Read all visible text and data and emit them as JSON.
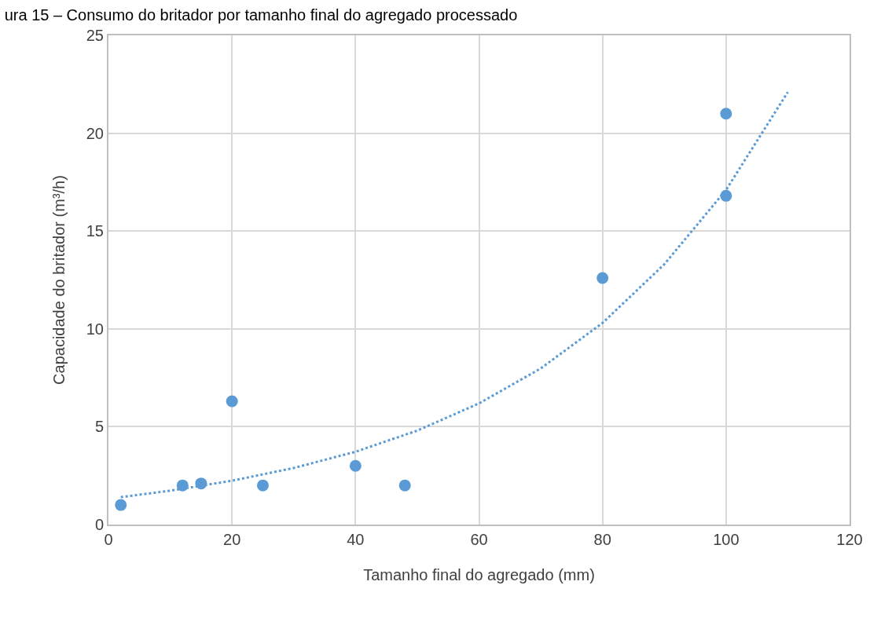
{
  "chart_data": {
    "type": "scatter",
    "title": "ura 15 – Consumo do britador por tamanho final do agregado processado",
    "xlabel": "Tamanho final do agregado (mm)",
    "ylabel": "Capacidade do britador (m³/h)",
    "series": [
      {
        "color": "#5b9bd5",
        "marker": "circle",
        "x": [
          2,
          12,
          15,
          20,
          25,
          40,
          48,
          80,
          100,
          100
        ],
        "values": [
          1.0,
          2.0,
          2.1,
          6.3,
          2.0,
          3.0,
          2.0,
          12.6,
          21.0,
          16.8
        ]
      },
      {
        "type": "line",
        "color": "#5b9bd5",
        "marker": "none",
        "line_style": "dotted",
        "x": [
          2,
          10,
          20,
          30,
          40,
          50,
          60,
          70,
          80,
          90,
          100,
          110
        ],
        "values": [
          1.4,
          1.73,
          2.24,
          2.89,
          3.72,
          4.8,
          6.19,
          7.98,
          10.3,
          13.3,
          17.1,
          22.1
        ]
      }
    ],
    "xlim": [
      0,
      120
    ],
    "xticks": [
      0,
      20,
      40,
      60,
      80,
      100,
      120
    ],
    "ylim": [
      0,
      25
    ],
    "yticks": [
      0,
      5,
      10,
      15,
      20,
      25
    ],
    "grid": true
  }
}
